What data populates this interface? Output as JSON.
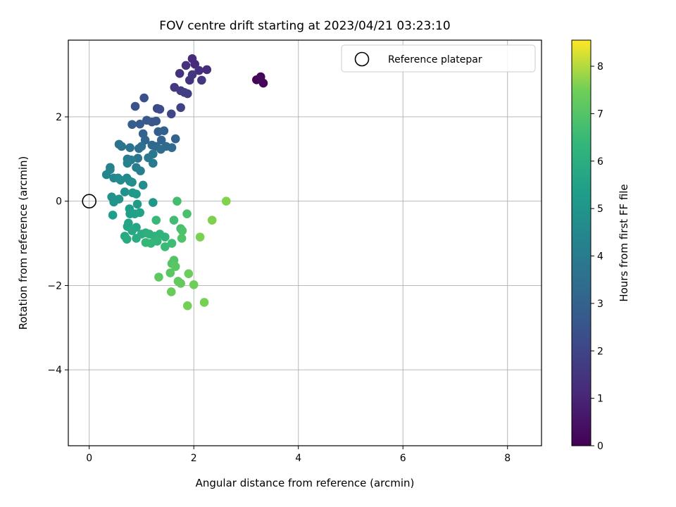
{
  "chart_data": {
    "type": "scatter",
    "title": "FOV centre drift starting at 2023/04/21 03:23:10",
    "xlabel": "Angular distance from reference (arcmin)",
    "ylabel": "Rotation from reference (arcmin)",
    "xlim": [
      -0.4,
      8.65
    ],
    "ylim": [
      -5.8,
      3.82
    ],
    "xticks": [
      0,
      2,
      4,
      6,
      8
    ],
    "yticks": [
      -4,
      -2,
      0,
      2
    ],
    "grid": true,
    "legend": {
      "placement": "top-right",
      "entries": [
        "Reference platepar"
      ]
    },
    "reference_point": {
      "x": 0,
      "y": 0
    },
    "colorbar": {
      "label": "Hours from first FF file",
      "colormap": "viridis",
      "range": [
        0,
        8.55
      ],
      "ticks": [
        0,
        1,
        2,
        3,
        4,
        5,
        6,
        7,
        8
      ]
    },
    "points": [
      {
        "x": 3.2,
        "y": 2.88,
        "h": 0.05
      },
      {
        "x": 3.28,
        "y": 2.95,
        "h": 0.1
      },
      {
        "x": 3.33,
        "y": 2.8,
        "h": 0.12
      },
      {
        "x": 3.26,
        "y": 2.9,
        "h": 0.2
      },
      {
        "x": 1.97,
        "y": 3.38,
        "h": 1.0
      },
      {
        "x": 2.02,
        "y": 3.25,
        "h": 1.05
      },
      {
        "x": 2.25,
        "y": 3.12,
        "h": 1.1
      },
      {
        "x": 2.1,
        "y": 3.1,
        "h": 1.15
      },
      {
        "x": 1.85,
        "y": 3.22,
        "h": 1.2
      },
      {
        "x": 1.73,
        "y": 3.03,
        "h": 1.25
      },
      {
        "x": 1.92,
        "y": 2.87,
        "h": 1.3
      },
      {
        "x": 2.15,
        "y": 2.87,
        "h": 1.35
      },
      {
        "x": 1.97,
        "y": 3.0,
        "h": 1.4
      },
      {
        "x": 1.63,
        "y": 2.7,
        "h": 1.45
      },
      {
        "x": 1.75,
        "y": 2.62,
        "h": 1.5
      },
      {
        "x": 1.88,
        "y": 2.55,
        "h": 1.55
      },
      {
        "x": 1.82,
        "y": 2.58,
        "h": 1.6
      },
      {
        "x": 1.75,
        "y": 2.22,
        "h": 1.7
      },
      {
        "x": 1.57,
        "y": 2.07,
        "h": 1.8
      },
      {
        "x": 1.3,
        "y": 2.2,
        "h": 1.9
      },
      {
        "x": 1.35,
        "y": 2.18,
        "h": 2.0
      },
      {
        "x": 1.05,
        "y": 2.45,
        "h": 2.1
      },
      {
        "x": 0.88,
        "y": 2.25,
        "h": 2.2
      },
      {
        "x": 1.2,
        "y": 1.88,
        "h": 2.3
      },
      {
        "x": 1.28,
        "y": 1.9,
        "h": 2.35
      },
      {
        "x": 1.1,
        "y": 1.92,
        "h": 2.4
      },
      {
        "x": 0.97,
        "y": 1.83,
        "h": 2.45
      },
      {
        "x": 0.82,
        "y": 1.82,
        "h": 2.5
      },
      {
        "x": 1.32,
        "y": 1.65,
        "h": 2.55
      },
      {
        "x": 1.43,
        "y": 1.67,
        "h": 2.6
      },
      {
        "x": 1.03,
        "y": 1.6,
        "h": 2.65
      },
      {
        "x": 1.65,
        "y": 1.48,
        "h": 2.7
      },
      {
        "x": 1.07,
        "y": 1.45,
        "h": 2.75
      },
      {
        "x": 1.38,
        "y": 1.45,
        "h": 2.8
      },
      {
        "x": 1.2,
        "y": 1.33,
        "h": 2.85
      },
      {
        "x": 1.28,
        "y": 1.3,
        "h": 2.9
      },
      {
        "x": 1.47,
        "y": 1.3,
        "h": 2.95
      },
      {
        "x": 1.58,
        "y": 1.27,
        "h": 3.0
      },
      {
        "x": 1.37,
        "y": 1.23,
        "h": 3.05
      },
      {
        "x": 0.95,
        "y": 1.25,
        "h": 3.1
      },
      {
        "x": 1.0,
        "y": 1.3,
        "h": 3.15
      },
      {
        "x": 0.57,
        "y": 1.35,
        "h": 3.2
      },
      {
        "x": 0.62,
        "y": 1.3,
        "h": 3.25
      },
      {
        "x": 0.78,
        "y": 1.27,
        "h": 3.3
      },
      {
        "x": 0.93,
        "y": 1.02,
        "h": 3.35
      },
      {
        "x": 1.13,
        "y": 1.03,
        "h": 3.4
      },
      {
        "x": 1.22,
        "y": 1.12,
        "h": 3.45
      },
      {
        "x": 1.22,
        "y": 0.9,
        "h": 3.5
      },
      {
        "x": 0.73,
        "y": 1.0,
        "h": 3.55
      },
      {
        "x": 0.8,
        "y": 0.98,
        "h": 3.6
      },
      {
        "x": 0.9,
        "y": 0.8,
        "h": 3.65
      },
      {
        "x": 0.98,
        "y": 0.72,
        "h": 3.7
      },
      {
        "x": 0.73,
        "y": 0.9,
        "h": 3.75
      },
      {
        "x": 0.4,
        "y": 0.8,
        "h": 3.8
      },
      {
        "x": 0.4,
        "y": 0.75,
        "h": 3.85
      },
      {
        "x": 0.33,
        "y": 0.63,
        "h": 3.9
      },
      {
        "x": 0.47,
        "y": 0.55,
        "h": 3.95
      },
      {
        "x": 0.55,
        "y": 0.55,
        "h": 4.0
      },
      {
        "x": 0.72,
        "y": 0.55,
        "h": 4.05
      },
      {
        "x": 0.78,
        "y": 0.47,
        "h": 4.1
      },
      {
        "x": 0.6,
        "y": 0.5,
        "h": 4.15
      },
      {
        "x": 1.03,
        "y": 0.38,
        "h": 4.2
      },
      {
        "x": 0.82,
        "y": 0.45,
        "h": 4.25
      },
      {
        "x": 0.68,
        "y": 0.22,
        "h": 4.3
      },
      {
        "x": 0.43,
        "y": 0.1,
        "h": 4.35
      },
      {
        "x": 0.57,
        "y": 0.05,
        "h": 4.4
      },
      {
        "x": 0.47,
        "y": -0.02,
        "h": 4.45
      },
      {
        "x": 1.22,
        "y": -0.03,
        "h": 4.5
      },
      {
        "x": 0.83,
        "y": 0.2,
        "h": 4.55
      },
      {
        "x": 0.9,
        "y": 0.17,
        "h": 4.6
      },
      {
        "x": 0.92,
        "y": -0.07,
        "h": 4.65
      },
      {
        "x": 0.77,
        "y": -0.18,
        "h": 4.7
      },
      {
        "x": 0.45,
        "y": -0.33,
        "h": 4.75
      },
      {
        "x": 0.78,
        "y": -0.3,
        "h": 4.8
      },
      {
        "x": 0.87,
        "y": -0.3,
        "h": 4.85
      },
      {
        "x": 0.97,
        "y": -0.27,
        "h": 4.9
      },
      {
        "x": 0.75,
        "y": -0.52,
        "h": 4.95
      },
      {
        "x": 0.73,
        "y": -0.6,
        "h": 5.0
      },
      {
        "x": 0.9,
        "y": -0.62,
        "h": 5.05
      },
      {
        "x": 0.82,
        "y": -0.7,
        "h": 5.1
      },
      {
        "x": 0.68,
        "y": -0.83,
        "h": 5.15
      },
      {
        "x": 0.72,
        "y": -0.9,
        "h": 5.2
      },
      {
        "x": 0.9,
        "y": -0.88,
        "h": 5.25
      },
      {
        "x": 1.0,
        "y": -0.78,
        "h": 5.3
      },
      {
        "x": 1.08,
        "y": -0.75,
        "h": 5.35
      },
      {
        "x": 1.15,
        "y": -0.78,
        "h": 5.4
      },
      {
        "x": 1.25,
        "y": -0.83,
        "h": 5.45
      },
      {
        "x": 1.35,
        "y": -0.78,
        "h": 5.5
      },
      {
        "x": 1.45,
        "y": -0.85,
        "h": 5.55
      },
      {
        "x": 1.3,
        "y": -0.95,
        "h": 5.6
      },
      {
        "x": 1.18,
        "y": -1.0,
        "h": 5.65
      },
      {
        "x": 1.08,
        "y": -0.98,
        "h": 5.7
      },
      {
        "x": 1.28,
        "y": -0.45,
        "h": 5.75
      },
      {
        "x": 1.45,
        "y": -1.08,
        "h": 5.8
      },
      {
        "x": 1.58,
        "y": -1.0,
        "h": 5.85
      },
      {
        "x": 1.62,
        "y": -0.45,
        "h": 5.9
      },
      {
        "x": 1.68,
        "y": 0.0,
        "h": 5.95
      },
      {
        "x": 1.75,
        "y": -0.65,
        "h": 6.0
      },
      {
        "x": 1.87,
        "y": -0.3,
        "h": 6.05
      },
      {
        "x": 1.78,
        "y": -0.7,
        "h": 6.1
      },
      {
        "x": 1.77,
        "y": -0.88,
        "h": 6.15
      },
      {
        "x": 1.62,
        "y": -1.4,
        "h": 6.2
      },
      {
        "x": 1.58,
        "y": -1.48,
        "h": 6.25
      },
      {
        "x": 1.65,
        "y": -1.55,
        "h": 6.3
      },
      {
        "x": 1.55,
        "y": -1.7,
        "h": 6.35
      },
      {
        "x": 1.33,
        "y": -1.8,
        "h": 6.4
      },
      {
        "x": 1.7,
        "y": -1.9,
        "h": 6.45
      },
      {
        "x": 1.75,
        "y": -1.95,
        "h": 6.5
      },
      {
        "x": 1.57,
        "y": -2.15,
        "h": 6.55
      },
      {
        "x": 1.9,
        "y": -1.72,
        "h": 6.6
      },
      {
        "x": 2.0,
        "y": -1.98,
        "h": 6.65
      },
      {
        "x": 1.88,
        "y": -2.48,
        "h": 6.7
      },
      {
        "x": 2.2,
        "y": -2.4,
        "h": 6.75
      },
      {
        "x": 2.12,
        "y": -0.85,
        "h": 6.8
      },
      {
        "x": 2.35,
        "y": -0.45,
        "h": 6.85
      },
      {
        "x": 2.62,
        "y": 0.0,
        "h": 6.9
      }
    ]
  }
}
